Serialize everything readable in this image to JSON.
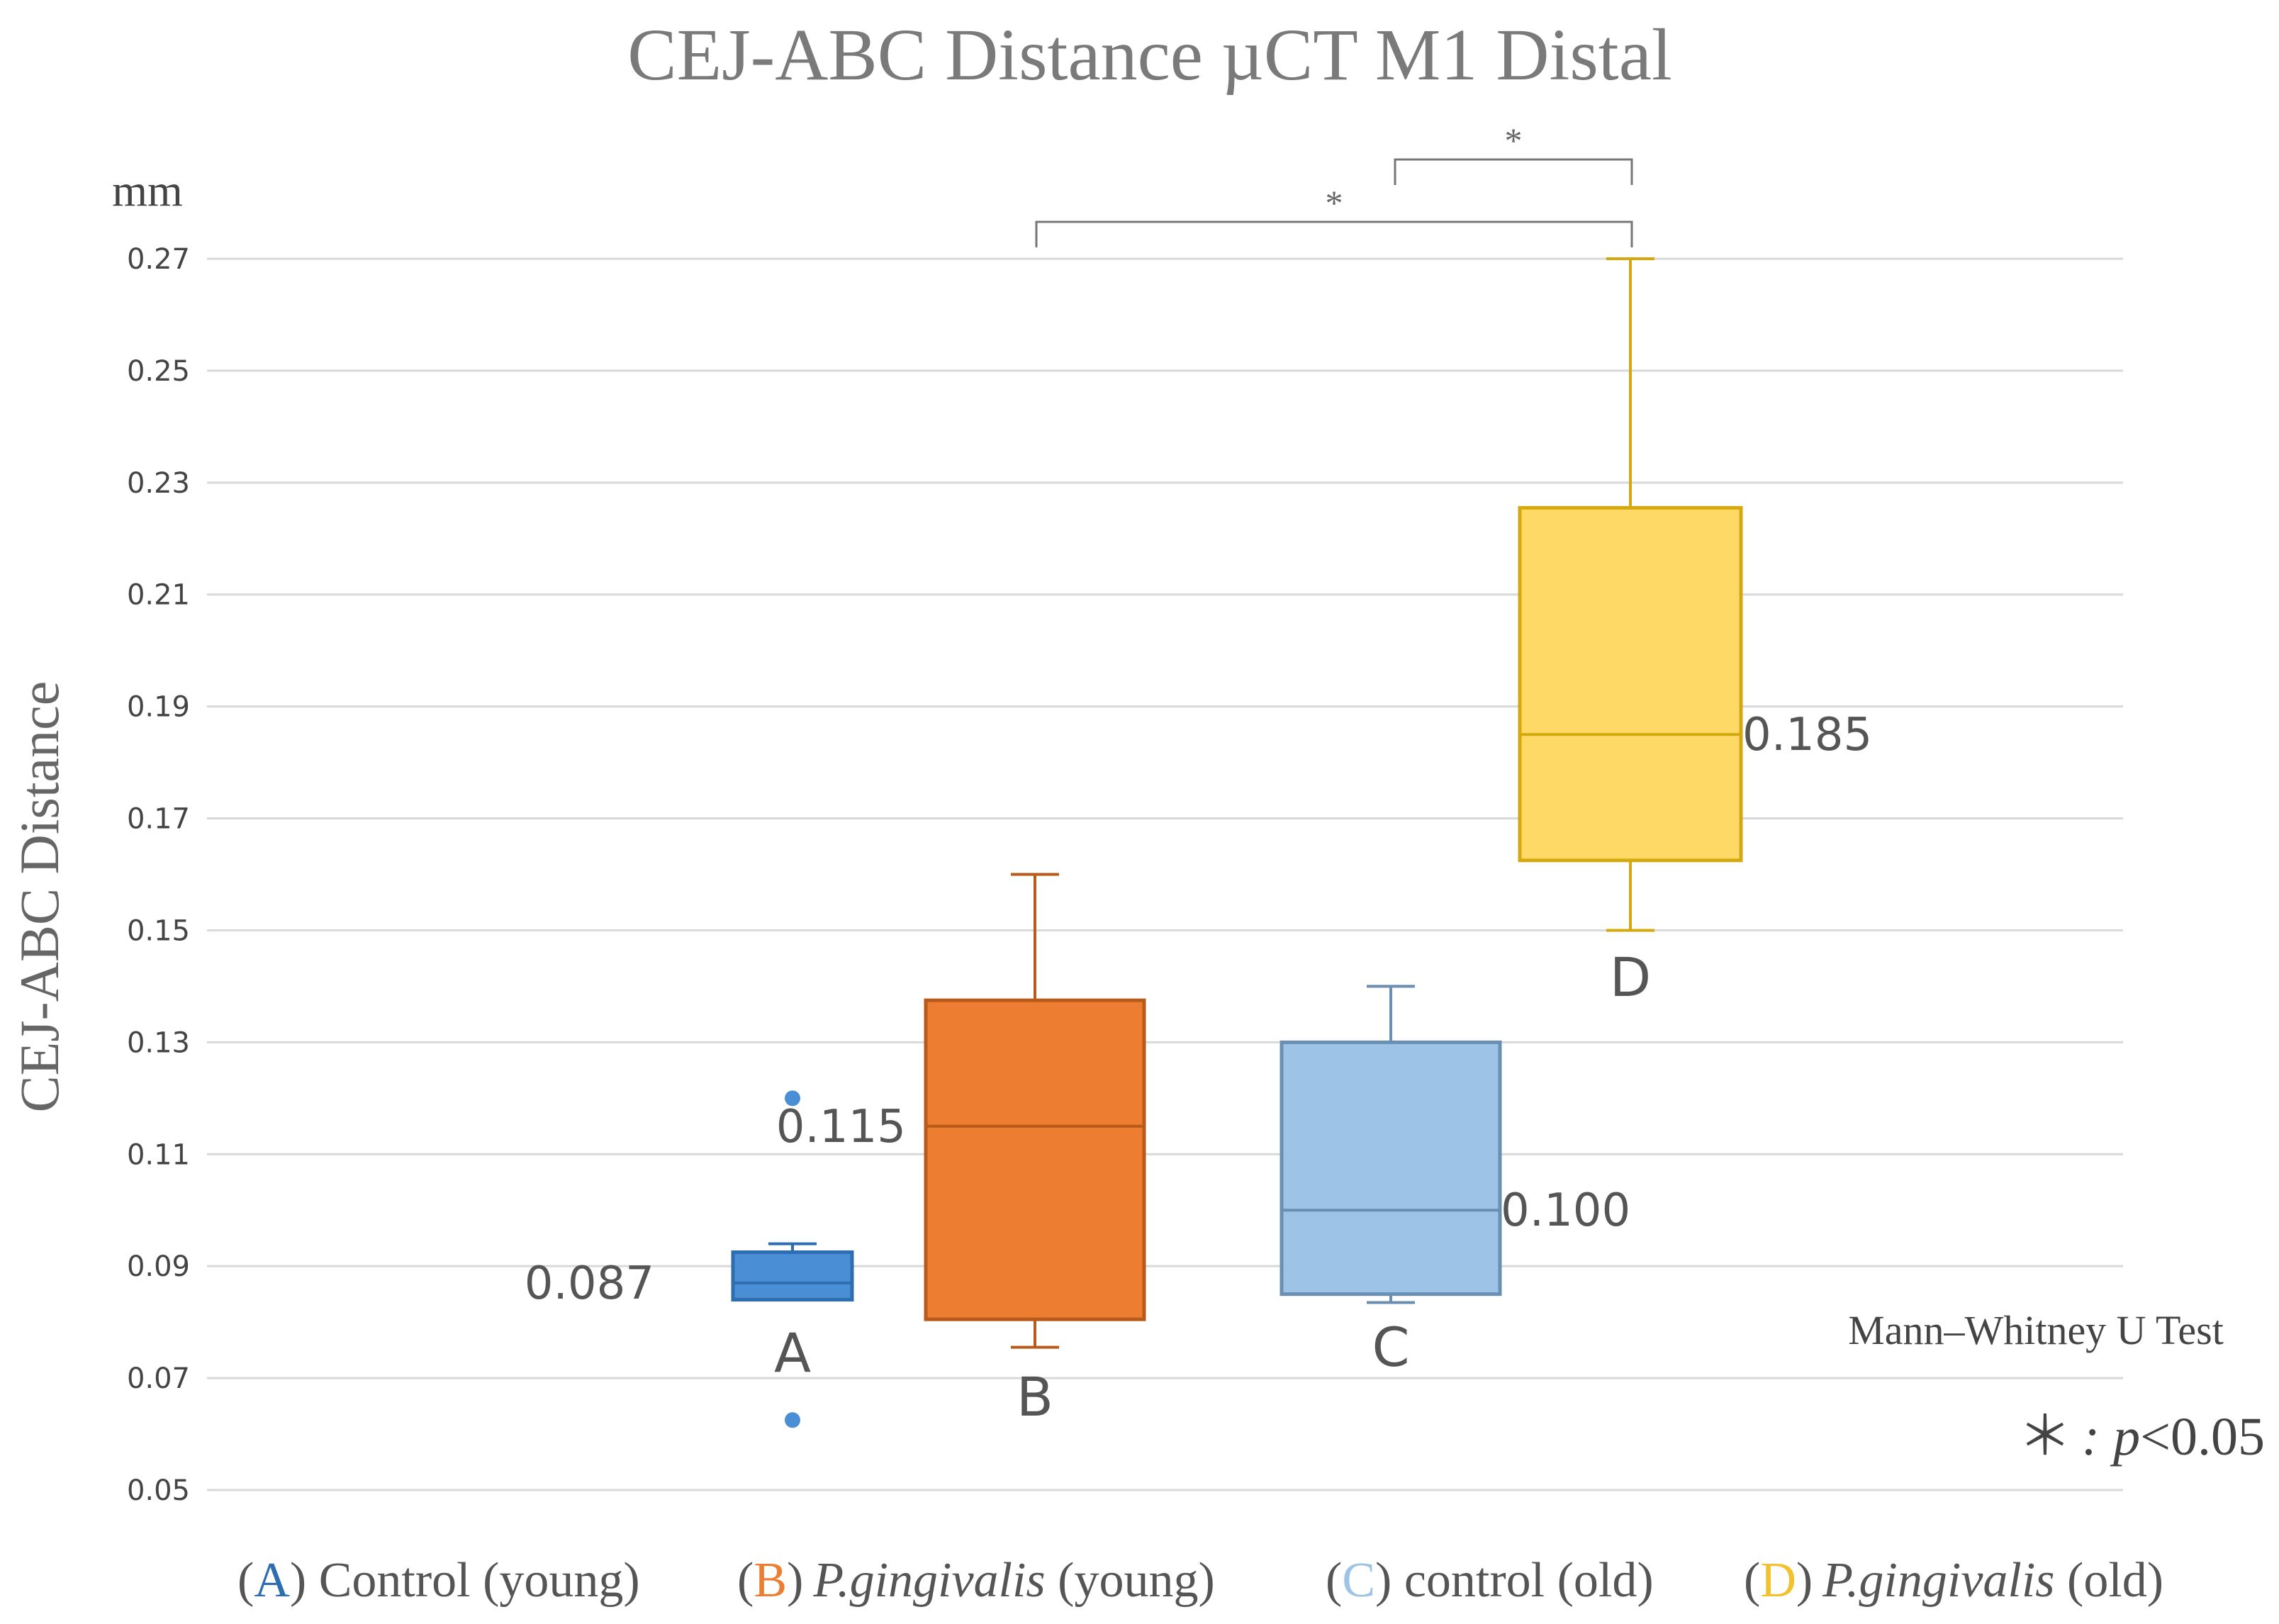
{
  "chart_data": {
    "type": "box",
    "title": "CEJ-ABC Distance µCT M1 Distal",
    "ylabel": "CEJ-ABC Distance",
    "yunit": "mm",
    "ylim": [
      0.05,
      0.27
    ],
    "yticks": [
      "0.05",
      "0.07",
      "0.09",
      "0.11",
      "0.13",
      "0.15",
      "0.17",
      "0.19",
      "0.21",
      "0.23",
      "0.25",
      "0.27"
    ],
    "grid": true,
    "boxes": [
      {
        "label": "A",
        "whisker_low": 0.084,
        "q1": 0.084,
        "median": 0.087,
        "q3": 0.0925,
        "whisker_high": 0.094,
        "outliers": [
          0.12,
          0.0625
        ],
        "median_label": "0.087",
        "fill": "#4a8ed6",
        "stroke": "#2e6db0"
      },
      {
        "label": "B",
        "whisker_low": 0.0755,
        "q1": 0.0805,
        "median": 0.115,
        "q3": 0.1375,
        "whisker_high": 0.16,
        "outliers": [],
        "median_label": "0.115",
        "fill": "#ed7d31",
        "stroke": "#b85a1a"
      },
      {
        "label": "C",
        "whisker_low": 0.0835,
        "q1": 0.085,
        "median": 0.1,
        "q3": 0.13,
        "whisker_high": 0.14,
        "outliers": [],
        "median_label": "0.100",
        "fill": "#9dc3e6",
        "stroke": "#6a8fb3"
      },
      {
        "label": "D",
        "whisker_low": 0.15,
        "q1": 0.1625,
        "median": 0.185,
        "q3": 0.2255,
        "whisker_high": 0.27,
        "outliers": [],
        "median_label": "0.185",
        "fill": "#ffd966",
        "stroke": "#d4a90f"
      }
    ],
    "significance": [
      {
        "from": "B",
        "to": "D",
        "symbol": "*"
      },
      {
        "from": "C",
        "to": "D",
        "symbol": "*"
      }
    ],
    "test_label": "Mann–Whitney U Test",
    "p_symbol": "＊",
    "p_text": ": p",
    "p_lt": "<",
    "p_value": "0.05",
    "legend": [
      {
        "letter": "A",
        "letter_color": "#2e6db0",
        "open": "(",
        "close": ")",
        "name_italic": "",
        "name": " Control (young)"
      },
      {
        "letter": "B",
        "letter_color": "#ed7d31",
        "open": "(",
        "close": ")",
        "name_italic": "P.gingivalis",
        "name": " (young)"
      },
      {
        "letter": "C",
        "letter_color": "#9dc3e6",
        "open": "(",
        "close": ")",
        "name_italic": "",
        "name": " control (old)"
      },
      {
        "letter": "D",
        "letter_color": "#f2c12e",
        "open": "(",
        "close": ")",
        "name_italic": "P.gingivalis",
        "name": " (old)"
      }
    ]
  }
}
